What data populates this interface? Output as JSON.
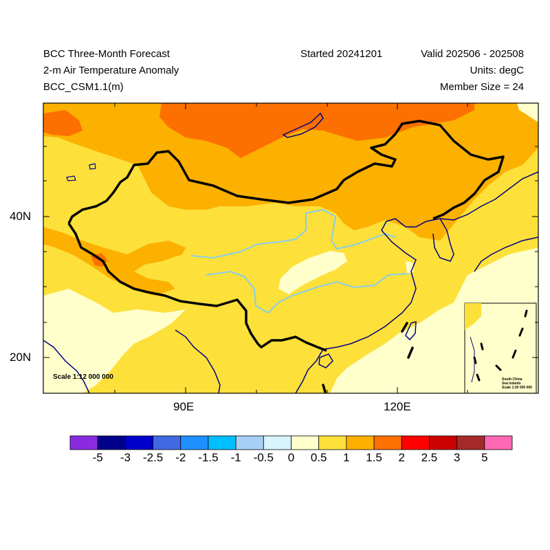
{
  "header": {
    "title_line1": "BCC Three-Month Forecast",
    "title_line2": "2-m Air Temperature Anomaly",
    "title_line3": "BCC_CSM1.1(m)",
    "started": "Started 20241201",
    "valid": "Valid 202506 - 202508",
    "units": "Units: degC",
    "members": "Member Size = 24"
  },
  "axes": {
    "x_ticks": [
      "90E",
      "120E"
    ],
    "y_ticks": [
      "40N",
      "20N"
    ]
  },
  "map": {
    "scale_note": "Scale 1:12 000 000",
    "inset_title_1": "South China",
    "inset_title_2": "Sea Islands",
    "inset_scale": "Scale 1:20 000 000",
    "colors": {
      "ocean_land_near_zero": "#ffffcc",
      "anom_0_5_1": "#fde03a",
      "anom_1_1_5": "#fcb000",
      "anom_1_5_2": "#fb7000",
      "border": "#000000",
      "coastline": "#000080",
      "rivers": "#87ceeb"
    }
  },
  "colorbar": {
    "labels": [
      "-5",
      "-3",
      "-2.5",
      "-2",
      "-1.5",
      "-1",
      "-0.5",
      "0",
      "0.5",
      "1",
      "1.5",
      "2",
      "2.5",
      "3",
      "5"
    ],
    "colors": [
      "#8a2be2",
      "#00008b",
      "#0000cd",
      "#4169e1",
      "#1e90ff",
      "#00bfff",
      "#a6d0f5",
      "#d8f4fe",
      "#ffffcc",
      "#fde03a",
      "#fcb000",
      "#fb7000",
      "#ff0000",
      "#cc0000",
      "#a52a2a",
      "#ff69b4"
    ]
  }
}
